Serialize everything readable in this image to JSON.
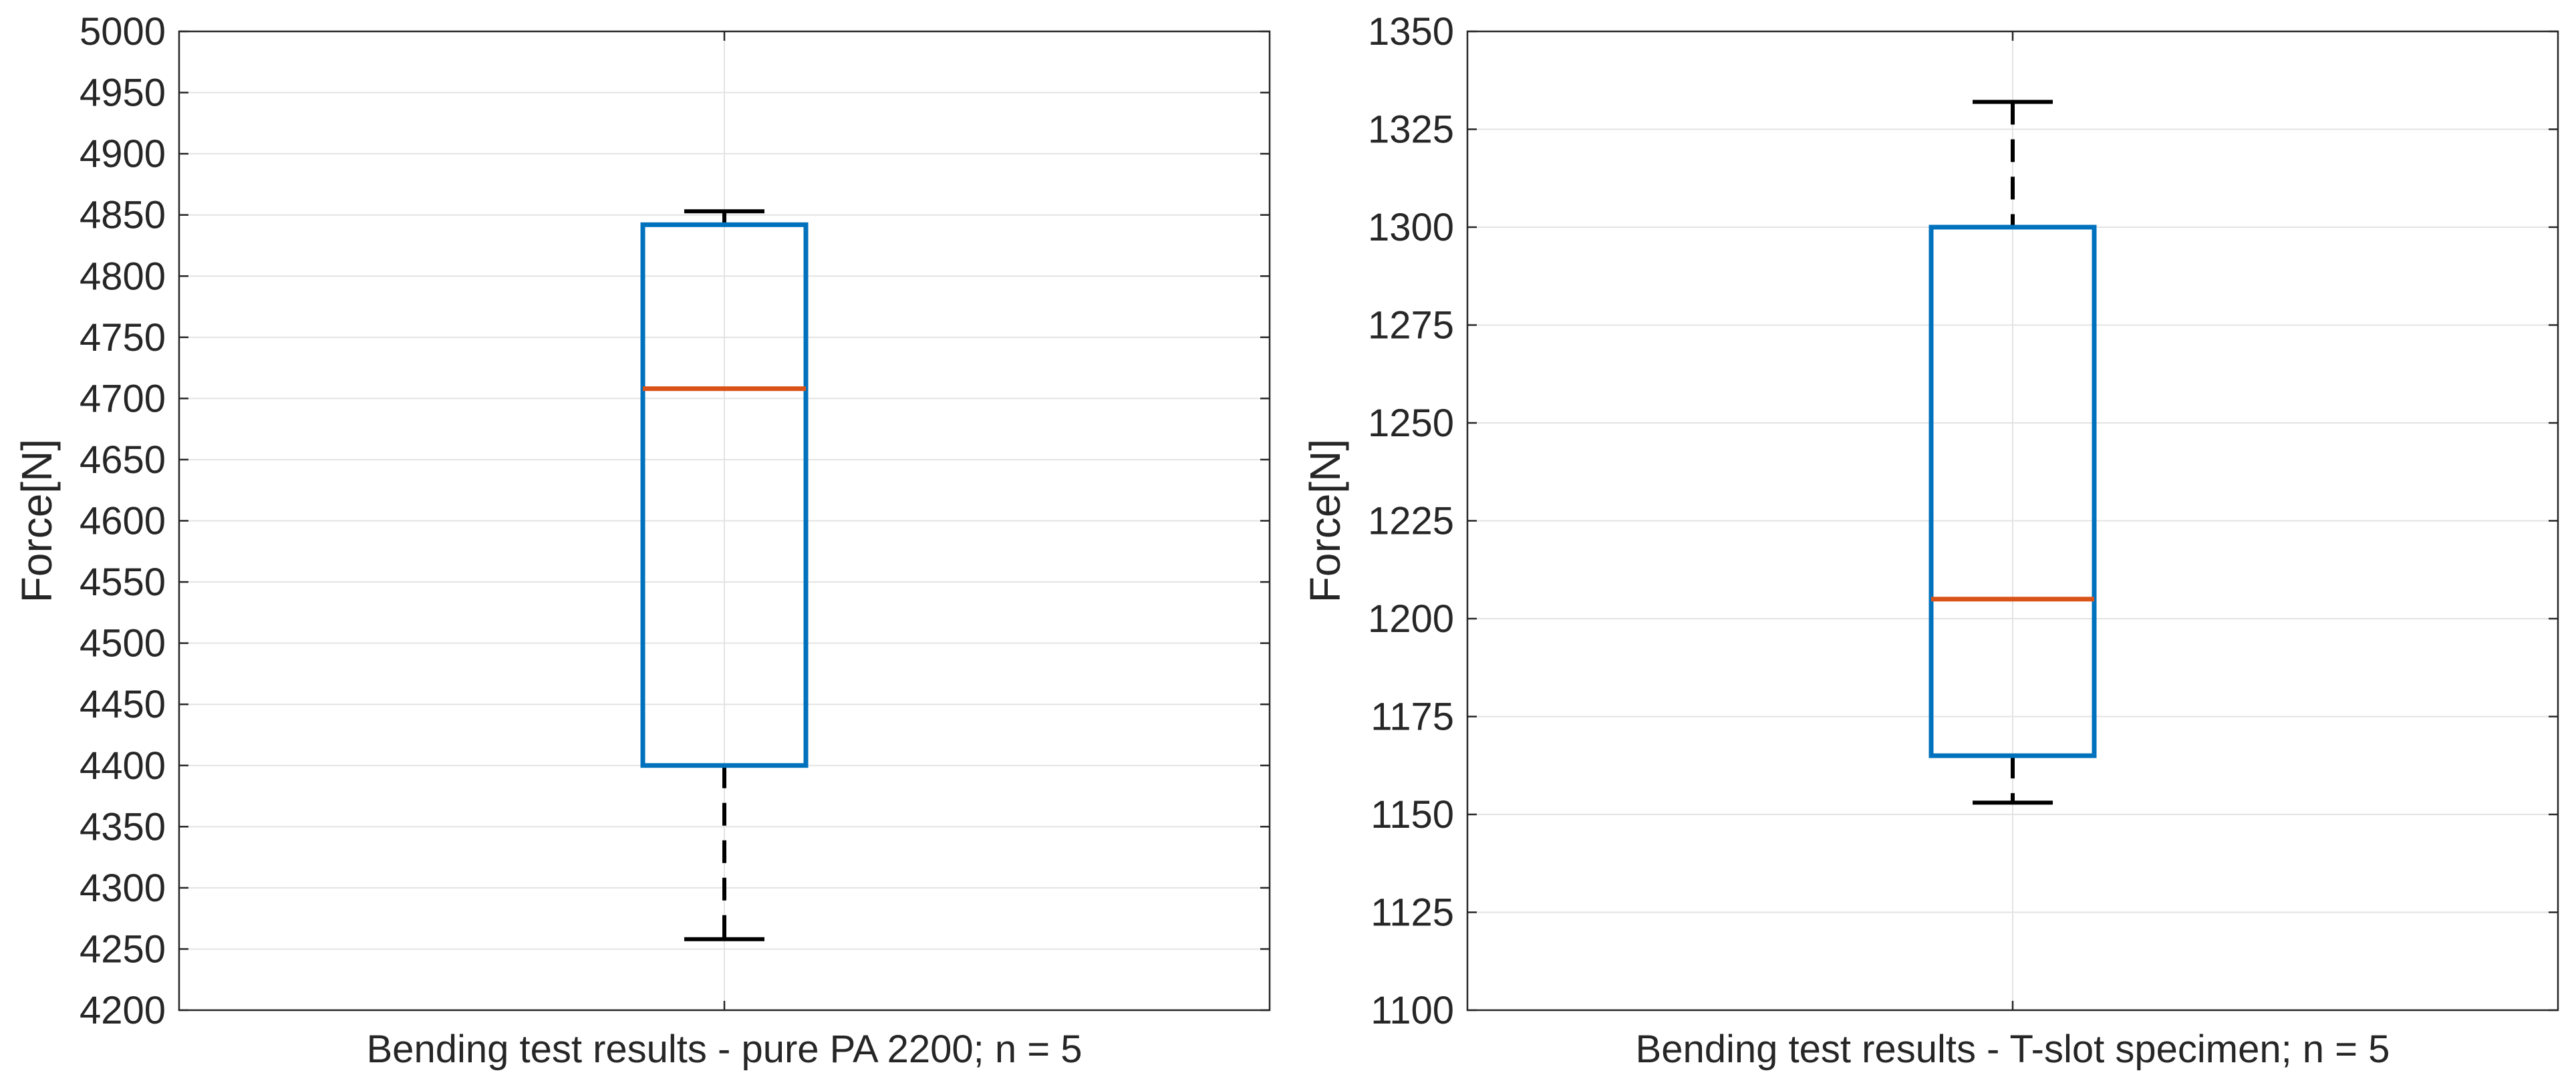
{
  "chart_data": [
    {
      "type": "box",
      "title": "",
      "xlabel": "Bending test results - pure PA 2200; n = 5",
      "ylabel": "Force[N]",
      "ylim": [
        4200,
        5000
      ],
      "yticks": [
        4200,
        4250,
        4300,
        4350,
        4400,
        4450,
        4500,
        4550,
        4600,
        4650,
        4700,
        4750,
        4800,
        4850,
        4900,
        4950,
        5000
      ],
      "grid": true,
      "box": {
        "whisker_low": 4258,
        "q1": 4400,
        "median": 4708,
        "q3": 4842,
        "whisker_high": 4853
      },
      "colors": {
        "box": "#0072bd",
        "median": "#d95319",
        "whisker": "#000000"
      }
    },
    {
      "type": "box",
      "title": "",
      "xlabel": "Bending test results - T-slot specimen; n = 5",
      "ylabel": "Force[N]",
      "ylim": [
        1100,
        1350
      ],
      "yticks": [
        1100,
        1125,
        1150,
        1175,
        1200,
        1225,
        1250,
        1275,
        1300,
        1325,
        1350
      ],
      "grid": true,
      "box": {
        "whisker_low": 1153,
        "q1": 1165,
        "median": 1205,
        "q3": 1300,
        "whisker_high": 1332
      },
      "colors": {
        "box": "#0072bd",
        "median": "#d95319",
        "whisker": "#000000"
      }
    }
  ]
}
